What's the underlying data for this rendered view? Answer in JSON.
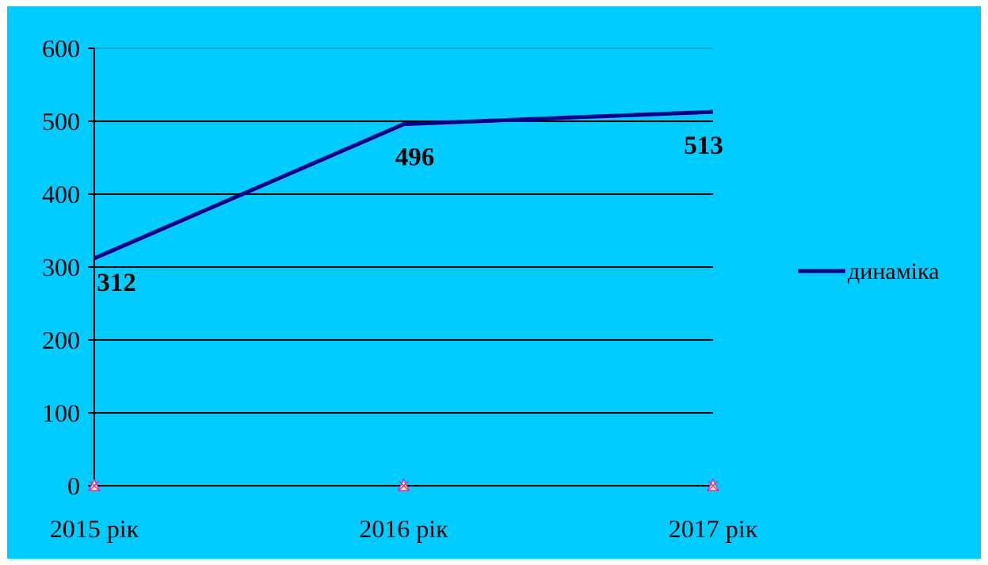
{
  "chart_data": {
    "type": "line",
    "title": "",
    "xlabel": "",
    "ylabel": "",
    "categories": [
      "2015 рік",
      "2016 рік",
      "2017 рік"
    ],
    "series": [
      {
        "name": "динаміка",
        "values": [
          312,
          496,
          513
        ],
        "data_labels": [
          "312",
          "496",
          "513"
        ],
        "color": "#00008b"
      }
    ],
    "ylim": [
      0,
      600
    ],
    "yticks": [
      0,
      100,
      200,
      300,
      400,
      500,
      600
    ],
    "ytick_labels": [
      "0",
      "100",
      "200",
      "300",
      "400",
      "500",
      "600"
    ],
    "grid": true,
    "legend_position": "right",
    "background_color": "#00ccff"
  }
}
